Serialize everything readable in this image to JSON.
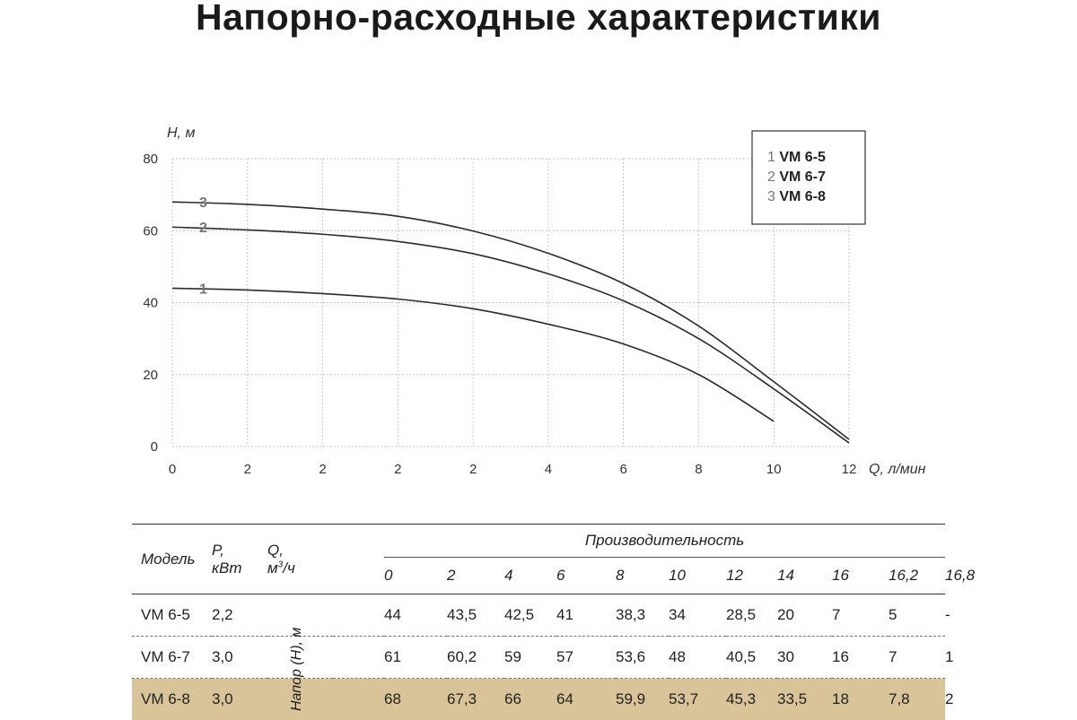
{
  "title": "Напорно-расходные характеристики",
  "chart_data": {
    "type": "line",
    "ylabel": "H, м",
    "xlabel": "Q, л/мин",
    "ylim": [
      0,
      80
    ],
    "y_ticks": [
      "0",
      "20",
      "40",
      "60",
      "80"
    ],
    "x_tick_labels": [
      "0",
      "2",
      "2",
      "2",
      "2",
      "4",
      "6",
      "8",
      "10",
      "12"
    ],
    "grid": true,
    "legend_position": "top-right",
    "legend": [
      {
        "num": "1",
        "model": "VM 6-5"
      },
      {
        "num": "2",
        "model": "VM 6-7"
      },
      {
        "num": "3",
        "model": "VM 6-8"
      }
    ],
    "series": [
      {
        "label": "1",
        "color": "#2b2b2b",
        "x_tick_index": [
          0,
          1,
          2,
          3,
          4,
          5,
          6,
          7,
          8
        ],
        "values": [
          44,
          43.5,
          42.5,
          41,
          38.3,
          34,
          28.5,
          20,
          7
        ]
      },
      {
        "label": "2",
        "color": "#2b2b2b",
        "x_tick_index": [
          0,
          1,
          2,
          3,
          4,
          5,
          6,
          7,
          8,
          9
        ],
        "values": [
          61,
          60.2,
          59,
          57,
          53.6,
          48,
          40.5,
          30,
          16,
          1
        ]
      },
      {
        "label": "3",
        "color": "#2b2b2b",
        "x_tick_index": [
          0,
          1,
          2,
          3,
          4,
          5,
          6,
          7,
          8,
          9
        ],
        "values": [
          68,
          67.3,
          66,
          64,
          59.9,
          53.7,
          45.3,
          33.5,
          18,
          2
        ]
      }
    ]
  },
  "table": {
    "model_header": "Модель",
    "p_header_1": "P,",
    "p_header_2": "кВт",
    "q_header_1": "Q,",
    "q_header_unit": "м",
    "q_header_sup": "3",
    "q_header_tail": "/ч",
    "perf_header": "Производительность",
    "flows": [
      "0",
      "2",
      "4",
      "6",
      "8",
      "10",
      "12",
      "14",
      "16",
      "16,2",
      "16,8"
    ],
    "head_label": "Напор (H), м",
    "highlight_color": "#d9c49a",
    "rows": [
      {
        "model": "VM 6-5",
        "power": "2,2",
        "values": [
          "44",
          "43,5",
          "42,5",
          "41",
          "38,3",
          "34",
          "28,5",
          "20",
          "7",
          "5",
          "-"
        ]
      },
      {
        "model": "VM 6-7",
        "power": "3,0",
        "values": [
          "61",
          "60,2",
          "59",
          "57",
          "53,6",
          "48",
          "40,5",
          "30",
          "16",
          "7",
          "1"
        ]
      },
      {
        "model": "VM 6-8",
        "power": "3,0",
        "values": [
          "68",
          "67,3",
          "66",
          "64",
          "59,9",
          "53,7",
          "45,3",
          "33,5",
          "18",
          "7,8",
          "2"
        ]
      }
    ]
  }
}
